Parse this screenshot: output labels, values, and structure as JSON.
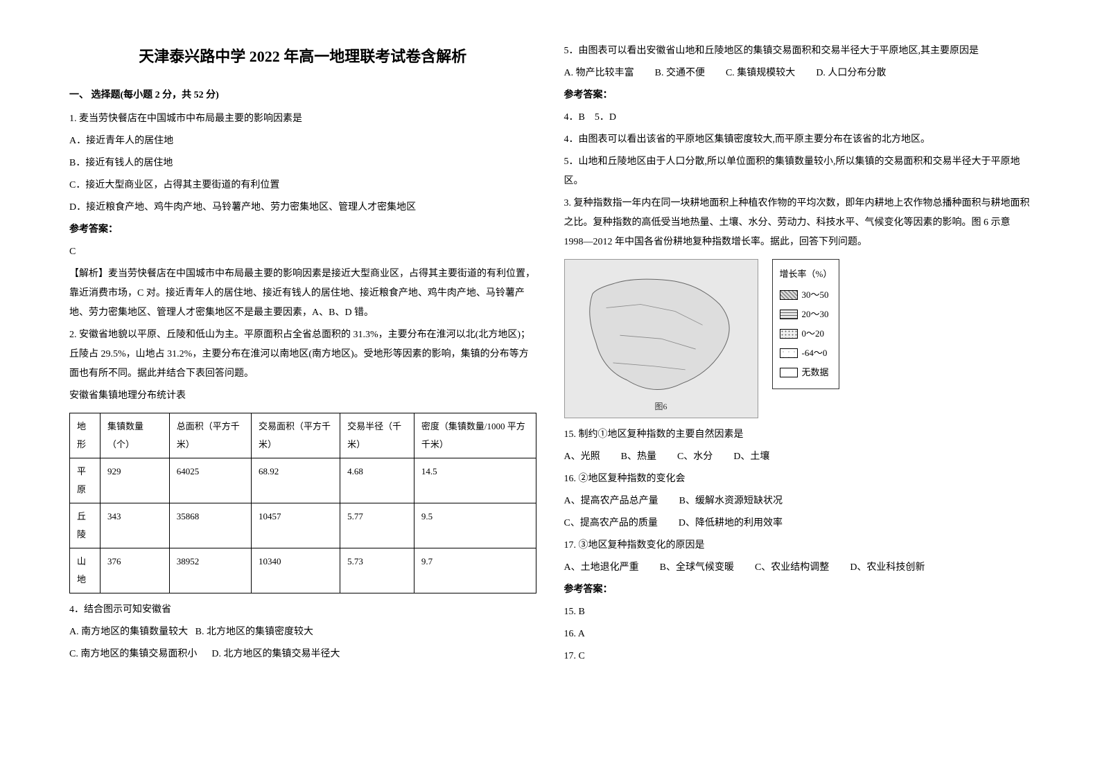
{
  "title": "天津泰兴路中学 2022 年高一地理联考试卷含解析",
  "section1": "一、 选择题(每小题 2 分，共 52 分)",
  "q1": {
    "stem": "1. 麦当劳快餐店在中国城市中布局最主要的影响因素是",
    "optA": "A．接近青年人的居住地",
    "optB": "B．接近有钱人的居住地",
    "optC": "C．接近大型商业区，占得其主要街道的有利位置",
    "optD": "D．接近粮食产地、鸡牛肉产地、马铃薯产地、劳力密集地区、管理人才密集地区",
    "answerLabel": "参考答案：",
    "answer": "C",
    "analysis": "【解析】麦当劳快餐店在中国城市中布局最主要的影响因素是接近大型商业区，占得其主要街道的有利位置，靠近消费市场，C 对。接近青年人的居住地、接近有钱人的居住地、接近粮食产地、鸡牛肉产地、马铃薯产地、劳力密集地区、管理人才密集地区不是最主要因素，A、B、D 错。"
  },
  "q2": {
    "intro": "2. 安徽省地貌以平原、丘陵和低山为主。平原面积占全省总面积的 31.3%，主要分布在淮河以北(北方地区)；丘陵占 29.5%，山地占 31.2%，主要分布在淮河以南地区(南方地区)。受地形等因素的影响，集镇的分布等方面也有所不同。据此并结合下表回答问题。",
    "tableTitle": "安徽省集镇地理分布统计表",
    "table": {
      "columns": [
        "地形",
        "集镇数量（个）",
        "总面积（平方千米）",
        "交易面积（平方千米）",
        "交易半径（千米）",
        "密度（集镇数量/1000 平方千米）"
      ],
      "rows": [
        [
          "平原",
          "929",
          "64025",
          "68.92",
          "4.68",
          "14.5"
        ],
        [
          "丘陵",
          "343",
          "35868",
          "10457",
          "5.77",
          "9.5"
        ],
        [
          "山地",
          "376",
          "38952",
          "10340",
          "5.73",
          "9.7"
        ]
      ]
    },
    "q4": {
      "stem": "4．结合图示可知安徽省",
      "optA": "A. 南方地区的集镇数量较大",
      "optB": "B. 北方地区的集镇密度较大",
      "optC": "C. 南方地区的集镇交易面积小",
      "optD": "D. 北方地区的集镇交易半径大"
    },
    "q5": {
      "stem": "5．由图表可以看出安徽省山地和丘陵地区的集镇交易面积和交易半径大于平原地区,其主要原因是",
      "optA": "A. 物产比较丰富",
      "optB": "B. 交通不便",
      "optC": "C. 集镇规模较大",
      "optD": "D. 人口分布分散"
    },
    "answerLabel": "参考答案：",
    "a4": "4．B",
    "a5": "5．D",
    "ex4": "4．由图表可以看出该省的平原地区集镇密度较大,而平原主要分布在该省的北方地区。",
    "ex5": "5．山地和丘陵地区由于人口分散,所以单位面积的集镇数量较小,所以集镇的交易面积和交易半径大于平原地区。"
  },
  "q3": {
    "intro": "3. 复种指数指一年内在同一块耕地面积上种植农作物的平均次数，即年内耕地上农作物总播种面积与耕地面积之比。复种指数的高低受当地热量、土壤、水分、劳动力、科技水平、气候变化等因素的影响。图 6 示意 1998—2012 年中国各省份耕地复种指数增长率。据此，回答下列问题。",
    "legend": {
      "title": "增长率（%）",
      "items": [
        {
          "label": "30～50",
          "swatch_bg": "#d9d9d9",
          "swatch_pattern": "diag"
        },
        {
          "label": "20～30",
          "swatch_bg": "#e8e8e8",
          "swatch_pattern": "horiz"
        },
        {
          "label": "0～20",
          "swatch_bg": "#efefef",
          "swatch_pattern": "dots"
        },
        {
          "label": "-64～0",
          "swatch_bg": "#ffffff",
          "swatch_pattern": "sparse"
        },
        {
          "label": "无数据",
          "swatch_bg": "#ffffff",
          "swatch_pattern": "none"
        }
      ]
    },
    "mapCaption": "图6",
    "q15": {
      "stem": "15.  制约①地区复种指数的主要自然因素是",
      "optA": "A、光照",
      "optB": "B、热量",
      "optC": "C、水分",
      "optD": "D、土壤"
    },
    "q16": {
      "stem": "16.  ②地区复种指数的变化会",
      "optA": "A、提高农产品总产量",
      "optB": "B、缓解水资源短缺状况",
      "optC": "C、提高农产品的质量",
      "optD": "D、降低耕地的利用效率"
    },
    "q17": {
      "stem": "17.  ③地区复种指数变化的原因是",
      "optA": "A、土地退化严重",
      "optB": "B、全球气候变暖",
      "optC": "C、农业结构调整",
      "optD": "D、农业科技创新"
    },
    "answerLabel": "参考答案：",
    "a15": "15. B",
    "a16": "16. A",
    "a17": "17. C"
  }
}
